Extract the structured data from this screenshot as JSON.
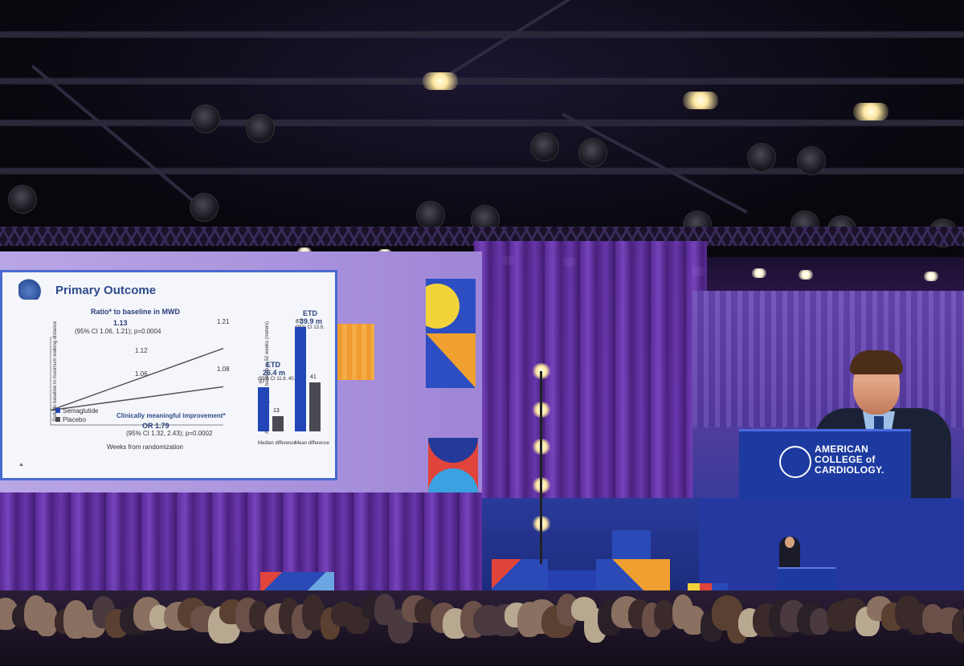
{
  "slide": {
    "title": "Primary Outcome",
    "chart_left": {
      "heading": "Ratio* to baseline in MWD",
      "stat_value": "1.13",
      "stat_ci": "(95% CI 1.06, 1.21); p=0.0004",
      "ylabel": "Ratio to baseline in maximum walking distance",
      "xlabel": "Weeks from randomization",
      "point_labels": [
        "1.21",
        "1.12",
        "1.06",
        "1.08"
      ],
      "legend": [
        "Semaglutide",
        "Placebo"
      ],
      "subheading": "Clinically meaningful improvement*",
      "or_value": "OR 1.79",
      "or_ci": "(95% CI 1.32, 2.43); p=0.0002"
    },
    "chart_right": {
      "ylabel": "Absolute change from baseline to 52 weeks (meters)",
      "etd_left": "ETD",
      "etd_left_value": "26.4 m",
      "etd_left_ci": "(95% CI 11.8, 40.0)",
      "etd_right": "ETD",
      "etd_right_value": "39.9 m",
      "etd_right_ci": "(95% CI 13.9, 66.0)",
      "categories": [
        "Median difference",
        "Mean difference"
      ],
      "bar_labels": [
        "37",
        "13",
        "87",
        "41"
      ]
    }
  },
  "branding": {
    "line1": "AMERICAN",
    "line2": "COLLEGE of",
    "line3": "CARDIOLOGY."
  },
  "chart_data": [
    {
      "type": "line",
      "title": "Ratio* to baseline in MWD",
      "xlabel": "Weeks from randomization",
      "ylabel": "Ratio to baseline in maximum walking distance",
      "x": [
        0,
        52
      ],
      "series": [
        {
          "name": "Semaglutide",
          "values": [
            1.0,
            1.21
          ]
        },
        {
          "name": "Placebo",
          "values": [
            1.0,
            1.08
          ]
        }
      ],
      "ylim": [
        0.95,
        1.25
      ]
    },
    {
      "type": "bar",
      "categories": [
        "Median difference",
        "Mean difference"
      ],
      "series": [
        {
          "name": "Semaglutide",
          "values": [
            37,
            87
          ]
        },
        {
          "name": "Placebo",
          "values": [
            13,
            41
          ]
        }
      ],
      "ylabel": "Absolute change from baseline to 52 weeks (meters)",
      "ylim": [
        0,
        100
      ]
    }
  ],
  "colors": {
    "semaglutide": "#2246b8",
    "placebo": "#4a4a52",
    "acc_blue": "#1d3aa0",
    "curtain": "#6b38b0"
  }
}
